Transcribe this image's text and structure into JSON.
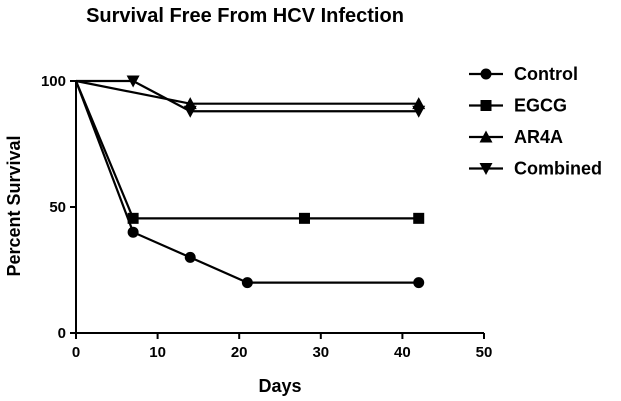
{
  "chart_data": {
    "type": "line",
    "title": "Survival Free From HCV Infection",
    "xlabel": "Days",
    "ylabel": "Percent  Survival",
    "xlim": [
      0,
      50
    ],
    "ylim": [
      0,
      100
    ],
    "x_ticks": [
      0,
      10,
      20,
      30,
      40,
      50
    ],
    "y_ticks": [
      0,
      50,
      100
    ],
    "grid": false,
    "legend_position": "right",
    "series": [
      {
        "name": "Control",
        "marker": "circle",
        "x": [
          0,
          7,
          14,
          21,
          42
        ],
        "y": [
          100,
          40,
          30,
          20,
          20
        ]
      },
      {
        "name": "EGCG",
        "marker": "square",
        "x": [
          0,
          7,
          28,
          42
        ],
        "y": [
          100,
          45.5,
          45.5,
          45.5
        ]
      },
      {
        "name": "AR4A",
        "marker": "triangle-up",
        "x": [
          0,
          14,
          42
        ],
        "y": [
          100,
          91,
          91
        ]
      },
      {
        "name": "Combined",
        "marker": "triangle-down",
        "x": [
          0,
          7,
          14,
          42
        ],
        "y": [
          100,
          100,
          88,
          88
        ]
      }
    ],
    "line_color": "#000000"
  }
}
